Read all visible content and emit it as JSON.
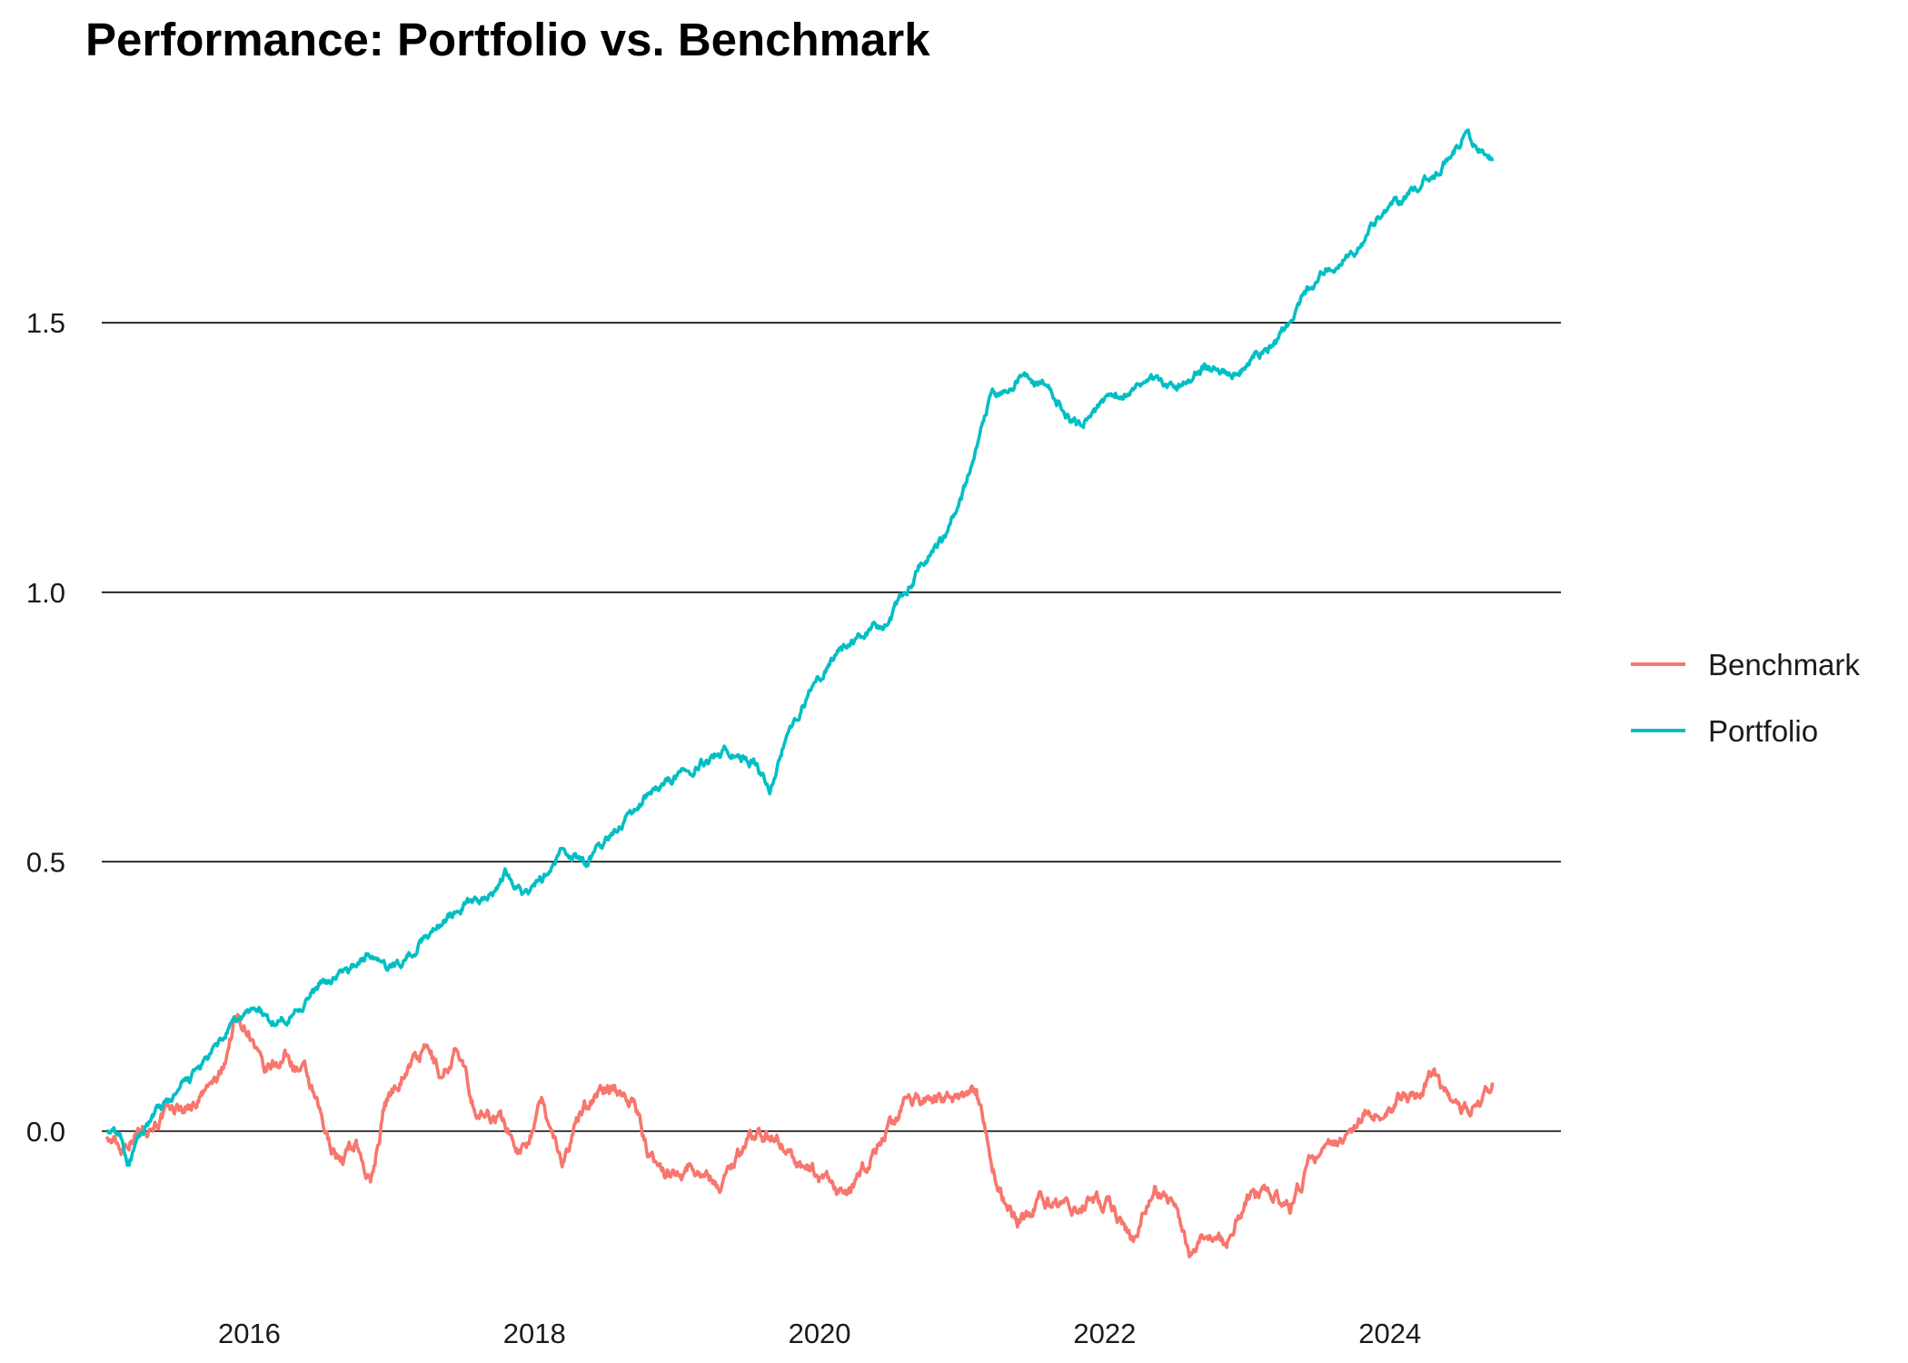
{
  "chart_data": {
    "type": "line",
    "title": "Performance: Portfolio vs. Benchmark",
    "xlabel": "",
    "ylabel": "",
    "xlim": [
      2014.85,
      2025.2
    ],
    "ylim": [
      -0.27,
      1.9
    ],
    "yticks": [
      0.0,
      0.5,
      1.0,
      1.5
    ],
    "ytick_labels": [
      "0.0",
      "0.5",
      "1.0",
      "1.5"
    ],
    "xticks": [
      2016,
      2018,
      2020,
      2022,
      2024
    ],
    "xtick_labels": [
      "2016",
      "2018",
      "2020",
      "2022",
      "2024"
    ],
    "grid": "horizontal major lines",
    "legend_position": "right",
    "series": [
      {
        "name": "Benchmark",
        "color": "#F8766D",
        "x": [
          2015.0,
          2015.1,
          2015.2,
          2015.4,
          2015.6,
          2015.8,
          2015.9,
          2016.0,
          2016.1,
          2016.25,
          2016.4,
          2016.55,
          2016.65,
          2016.75,
          2016.85,
          2016.95,
          2017.1,
          2017.25,
          2017.35,
          2017.45,
          2017.6,
          2017.75,
          2017.9,
          2018.05,
          2018.2,
          2018.35,
          2018.5,
          2018.7,
          2018.8,
          2018.95,
          2019.1,
          2019.3,
          2019.5,
          2019.7,
          2019.85,
          2020.0,
          2020.2,
          2020.4,
          2020.6,
          2020.8,
          2020.95,
          2021.1,
          2021.25,
          2021.4,
          2021.55,
          2021.7,
          2021.9,
          2022.05,
          2022.2,
          2022.35,
          2022.5,
          2022.6,
          2022.7,
          2022.85,
          2023.0,
          2023.15,
          2023.3,
          2023.45,
          2023.6,
          2023.8,
          2024.0,
          2024.15,
          2024.3,
          2024.5,
          2024.6,
          2024.72
        ],
        "values": [
          -0.01,
          -0.03,
          0.0,
          0.03,
          0.05,
          0.1,
          0.21,
          0.19,
          0.1,
          0.14,
          0.1,
          -0.02,
          -0.05,
          -0.02,
          -0.1,
          0.05,
          0.12,
          0.15,
          0.1,
          0.15,
          0.03,
          0.03,
          -0.04,
          0.05,
          -0.05,
          0.05,
          0.08,
          0.06,
          -0.05,
          -0.08,
          -0.06,
          -0.1,
          -0.01,
          -0.01,
          -0.06,
          -0.09,
          -0.12,
          -0.03,
          0.05,
          0.07,
          0.05,
          0.07,
          -0.1,
          -0.17,
          -0.12,
          -0.15,
          -0.13,
          -0.14,
          -0.2,
          -0.1,
          -0.15,
          -0.22,
          -0.18,
          -0.21,
          -0.12,
          -0.11,
          -0.16,
          -0.05,
          -0.02,
          0.03,
          0.05,
          0.06,
          0.1,
          0.03,
          0.05,
          0.09
        ]
      },
      {
        "name": "Portfolio",
        "color": "#00BFC4",
        "x": [
          2015.0,
          2015.1,
          2015.15,
          2015.3,
          2015.5,
          2015.7,
          2015.9,
          2016.05,
          2016.15,
          2016.3,
          2016.5,
          2016.7,
          2016.85,
          2016.95,
          2017.1,
          2017.3,
          2017.5,
          2017.65,
          2017.8,
          2017.95,
          2018.1,
          2018.2,
          2018.35,
          2018.55,
          2018.7,
          2018.85,
          2019.0,
          2019.2,
          2019.35,
          2019.55,
          2019.65,
          2019.75,
          2019.9,
          2020.1,
          2020.3,
          2020.5,
          2020.7,
          2020.85,
          2021.0,
          2021.2,
          2021.4,
          2021.6,
          2021.8,
          2021.95,
          2022.1,
          2022.3,
          2022.5,
          2022.7,
          2022.9,
          2023.05,
          2023.2,
          2023.4,
          2023.55,
          2023.75,
          2023.95,
          2024.15,
          2024.35,
          2024.55,
          2024.62,
          2024.72
        ],
        "values": [
          0.0,
          -0.01,
          -0.06,
          0.02,
          0.07,
          0.13,
          0.2,
          0.23,
          0.2,
          0.22,
          0.27,
          0.3,
          0.33,
          0.3,
          0.32,
          0.38,
          0.42,
          0.43,
          0.48,
          0.44,
          0.48,
          0.52,
          0.5,
          0.55,
          0.6,
          0.64,
          0.66,
          0.69,
          0.71,
          0.68,
          0.63,
          0.72,
          0.8,
          0.88,
          0.92,
          0.95,
          1.05,
          1.09,
          1.18,
          1.36,
          1.4,
          1.38,
          1.31,
          1.34,
          1.37,
          1.4,
          1.38,
          1.42,
          1.4,
          1.44,
          1.46,
          1.55,
          1.6,
          1.63,
          1.7,
          1.74,
          1.79,
          1.85,
          1.83,
          1.8
        ]
      }
    ]
  }
}
